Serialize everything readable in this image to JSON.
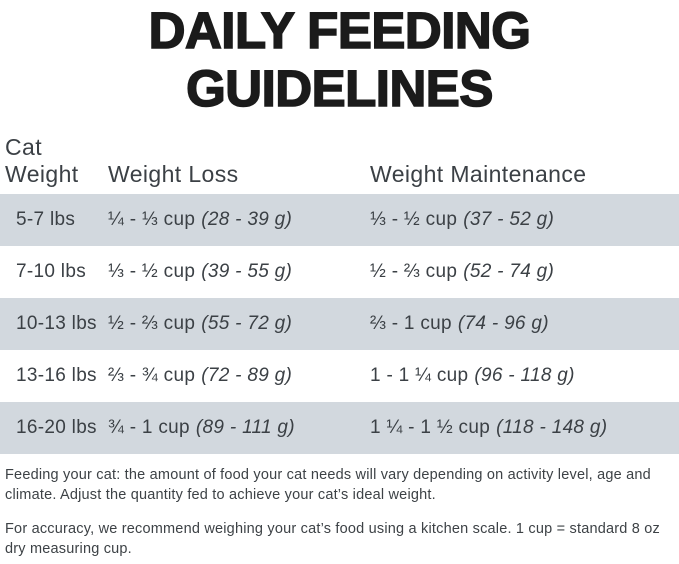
{
  "title": {
    "line1": "DAILY FEEDING",
    "line2": "GUIDELINES"
  },
  "table": {
    "headers": {
      "cat_weight": "Cat Weight",
      "weight_loss": "Weight Loss",
      "weight_maintenance": "Weight Maintenance"
    },
    "rows": [
      {
        "weight": "5-7 lbs",
        "loss_cup": "¼ - ⅓ cup",
        "loss_g": "(28 - 39 g)",
        "maint_cup": "⅓ - ½ cup",
        "maint_g": "(37 - 52 g)"
      },
      {
        "weight": "7-10 lbs",
        "loss_cup": "⅓ - ½ cup",
        "loss_g": "(39 - 55 g)",
        "maint_cup": "½ - ⅔ cup",
        "maint_g": "(52 - 74 g)"
      },
      {
        "weight": "10-13 lbs",
        "loss_cup": "½ - ⅔ cup",
        "loss_g": "(55 - 72 g)",
        "maint_cup": "⅔ - 1 cup",
        "maint_g": "(74 - 96 g)"
      },
      {
        "weight": "13-16 lbs",
        "loss_cup": "⅔ - ¾ cup",
        "loss_g": "(72 - 89 g)",
        "maint_cup": "1 - 1 ¼ cup",
        "maint_g": "(96 - 118 g)"
      },
      {
        "weight": "16-20 lbs",
        "loss_cup": "¾ - 1 cup",
        "loss_g": "(89 - 111 g)",
        "maint_cup": "1 ¼ - 1 ½ cup",
        "maint_g": "(118 - 148 g)"
      }
    ]
  },
  "footer": {
    "para1": "Feeding your cat: the amount of food your cat needs will vary depending on activity level, age and climate. Adjust the quantity fed to achieve your cat’s ideal weight.",
    "para2": "For accuracy, we recommend weighing your cat’s food using a kitchen scale. 1 cup = standard 8 oz dry measuring cup."
  },
  "colors": {
    "row_shade": "#d2d8de",
    "title_text": "#1b1b1b",
    "body_text": "#3b4045"
  }
}
